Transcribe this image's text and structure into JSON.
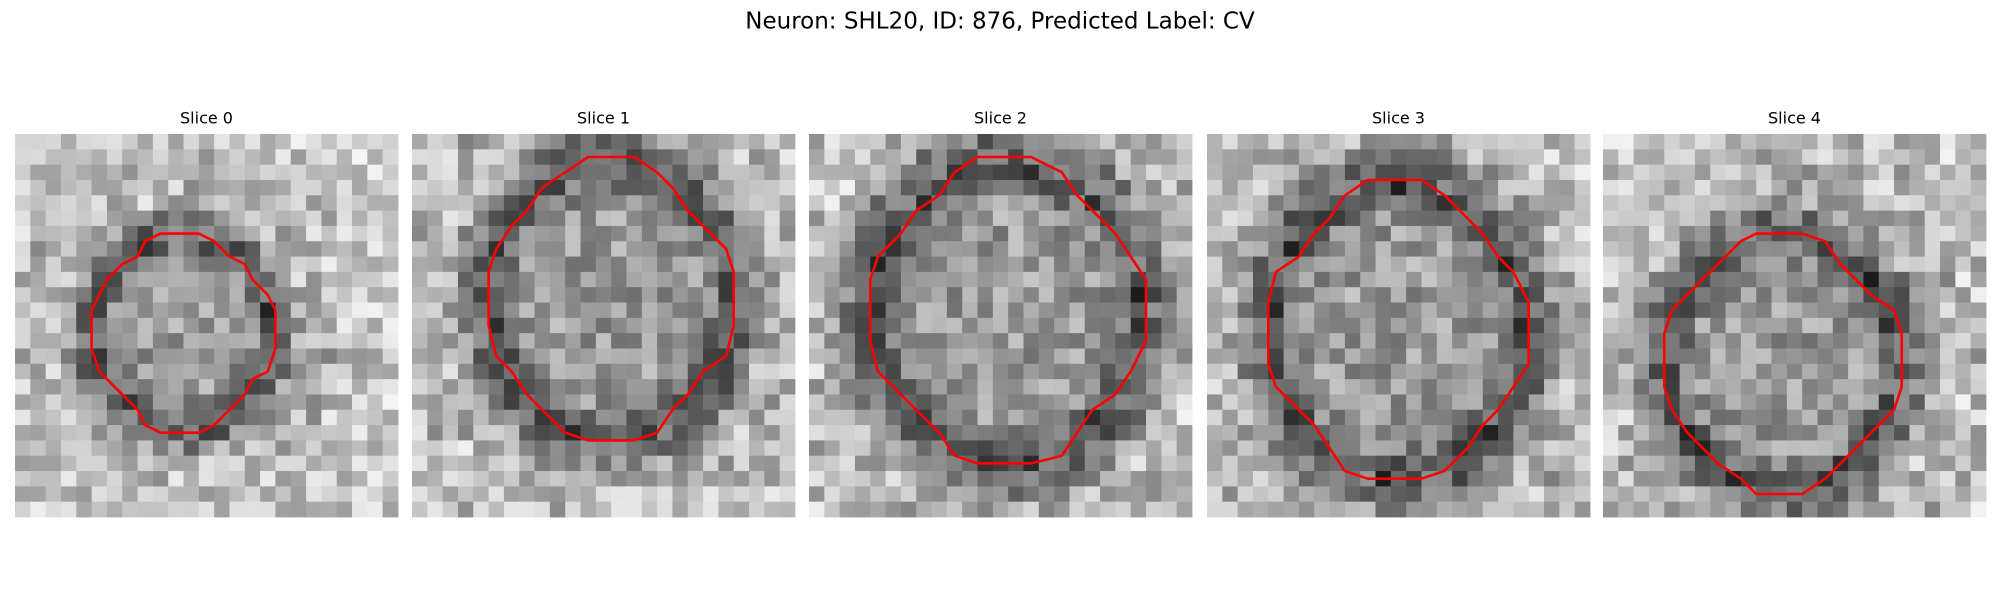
{
  "title": "Neuron: SHL20, ID: 876, Predicted Label: CV",
  "panels": [
    {
      "title": "Slice 0"
    },
    {
      "title": "Slice 1"
    },
    {
      "title": "Slice 2"
    },
    {
      "title": "Slice 3"
    },
    {
      "title": "Slice 4"
    }
  ]
}
